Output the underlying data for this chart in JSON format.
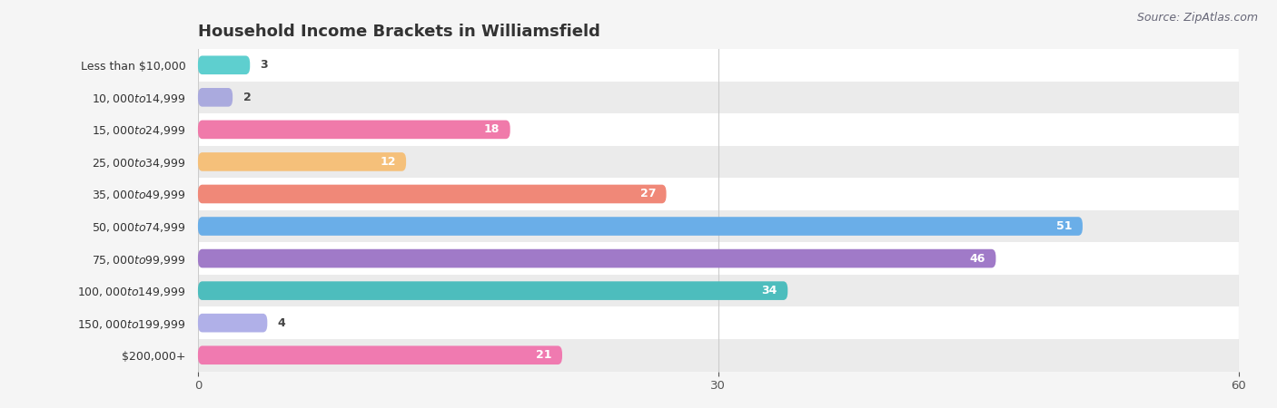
{
  "title": "Household Income Brackets in Williamsfield",
  "source": "Source: ZipAtlas.com",
  "categories": [
    "Less than $10,000",
    "$10,000 to $14,999",
    "$15,000 to $24,999",
    "$25,000 to $34,999",
    "$35,000 to $49,999",
    "$50,000 to $74,999",
    "$75,000 to $99,999",
    "$100,000 to $149,999",
    "$150,000 to $199,999",
    "$200,000+"
  ],
  "values": [
    3,
    2,
    18,
    12,
    27,
    51,
    46,
    34,
    4,
    21
  ],
  "bar_colors": [
    "#5ecfcf",
    "#aaaade",
    "#f07aaa",
    "#f5c07a",
    "#f08878",
    "#6aaee8",
    "#a07ac8",
    "#4dbdbd",
    "#b0b0e8",
    "#f07ab0"
  ],
  "xlim": [
    0,
    60
  ],
  "xticks": [
    0,
    30,
    60
  ],
  "bar_height": 0.58,
  "background_color": "#f5f5f5",
  "title_fontsize": 13,
  "label_fontsize": 9,
  "value_fontsize": 9,
  "source_fontsize": 9,
  "label_threshold": 8
}
